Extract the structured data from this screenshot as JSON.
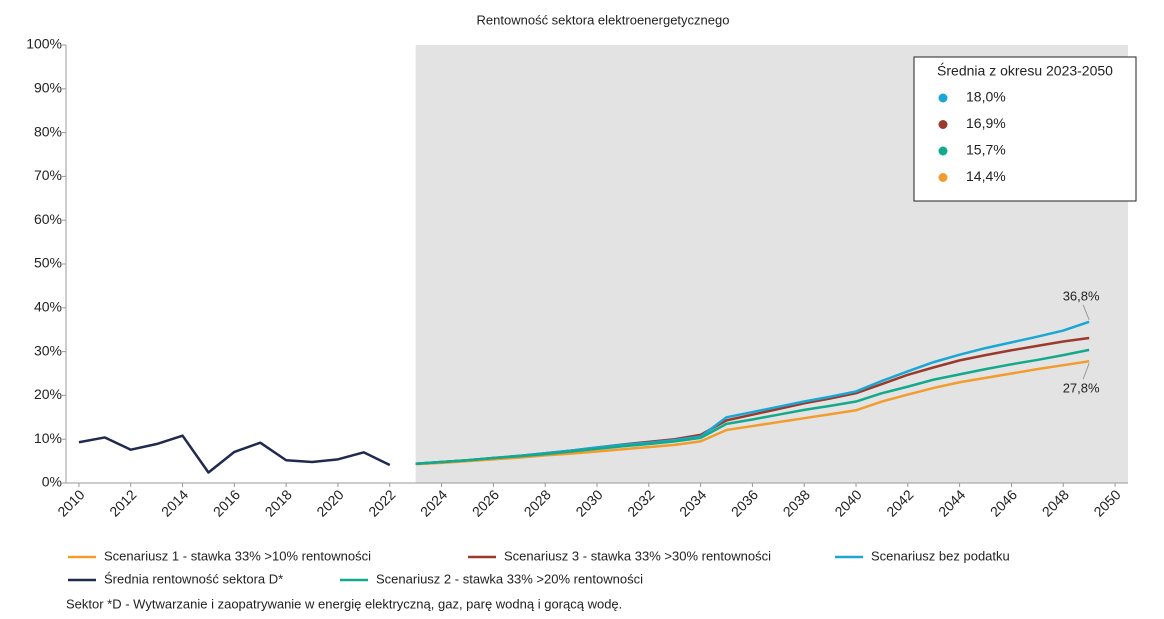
{
  "chart_data": {
    "type": "line",
    "title": "Rentowność sektora elektroenergetycznego",
    "xlim": [
      2009.5,
      2050.5
    ],
    "xticks": [
      2010,
      2012,
      2014,
      2016,
      2018,
      2020,
      2022,
      2024,
      2026,
      2028,
      2030,
      2032,
      2034,
      2036,
      2038,
      2040,
      2042,
      2044,
      2046,
      2048,
      2050
    ],
    "ylim": [
      0,
      100
    ],
    "yticks": [
      {
        "value": 0,
        "label": "0%"
      },
      {
        "value": 10,
        "label": "10%"
      },
      {
        "value": 20,
        "label": "20%"
      },
      {
        "value": 30,
        "label": "30%"
      },
      {
        "value": 40,
        "label": "40%"
      },
      {
        "value": 50,
        "label": "50%"
      },
      {
        "value": 60,
        "label": "60%"
      },
      {
        "value": 70,
        "label": "70%"
      },
      {
        "value": 80,
        "label": "80%"
      },
      {
        "value": 90,
        "label": "90%"
      },
      {
        "value": 100,
        "label": "100%"
      }
    ],
    "shaded_region": {
      "x": [
        2023,
        2050.5
      ],
      "color": "#e3e3e3"
    },
    "series": [
      {
        "name": "Scenariusz 1 - stawka 33% >10% rentowności",
        "color": "#f39c2e",
        "x": [
          2023,
          2024,
          2025,
          2026,
          2027,
          2028,
          2029,
          2030,
          2031,
          2032,
          2033,
          2034,
          2035,
          2036,
          2037,
          2038,
          2039,
          2040,
          2041,
          2042,
          2043,
          2044,
          2045,
          2046,
          2047,
          2048,
          2049
        ],
        "values": [
          4.3,
          4.6,
          5.0,
          5.4,
          5.8,
          6.3,
          6.7,
          7.2,
          7.7,
          8.2,
          8.7,
          9.5,
          12.1,
          13.0,
          13.9,
          14.8,
          15.7,
          16.6,
          18.6,
          20.2,
          21.7,
          23.0,
          24.0,
          25.0,
          26.0,
          26.9,
          27.8
        ]
      },
      {
        "name": "Scenariusz 3 - stawka 33% >30% rentowności",
        "color": "#9b3a2c",
        "x": [
          2023,
          2024,
          2025,
          2026,
          2027,
          2028,
          2029,
          2030,
          2031,
          2032,
          2033,
          2034,
          2035,
          2036,
          2037,
          2038,
          2039,
          2040,
          2041,
          2042,
          2043,
          2044,
          2045,
          2046,
          2047,
          2048,
          2049
        ],
        "values": [
          4.4,
          4.8,
          5.2,
          5.7,
          6.2,
          6.8,
          7.4,
          8.1,
          8.8,
          9.4,
          10.0,
          11.0,
          14.3,
          15.6,
          16.9,
          18.2,
          19.3,
          20.5,
          22.6,
          24.7,
          26.4,
          28.0,
          29.2,
          30.3,
          31.3,
          32.3,
          33.1
        ]
      },
      {
        "name": "Scenariusz bez podatku",
        "color": "#1aa7d4",
        "x": [
          2023,
          2024,
          2025,
          2026,
          2027,
          2028,
          2029,
          2030,
          2031,
          2032,
          2033,
          2034,
          2035,
          2036,
          2037,
          2038,
          2039,
          2040,
          2041,
          2042,
          2043,
          2044,
          2045,
          2046,
          2047,
          2048,
          2049
        ],
        "values": [
          4.4,
          4.8,
          5.2,
          5.7,
          6.2,
          6.8,
          7.4,
          8.1,
          8.7,
          9.2,
          9.8,
          10.6,
          15.0,
          16.2,
          17.4,
          18.6,
          19.7,
          20.9,
          23.3,
          25.5,
          27.6,
          29.3,
          30.8,
          32.1,
          33.4,
          34.8,
          36.8
        ]
      },
      {
        "name": "Średnia rentowność sektora D*",
        "color": "#1f2a4e",
        "x": [
          2010,
          2011,
          2012,
          2013,
          2014,
          2015,
          2016,
          2017,
          2018,
          2019,
          2020,
          2021,
          2022
        ],
        "values": [
          9.3,
          10.4,
          7.6,
          8.9,
          10.8,
          2.4,
          7.1,
          9.2,
          5.2,
          4.8,
          5.4,
          7.0,
          4.1
        ]
      },
      {
        "name": "Scenariusz 2 - stawka 33% >20% rentowności",
        "color": "#13a98b",
        "x": [
          2023,
          2024,
          2025,
          2026,
          2027,
          2028,
          2029,
          2030,
          2031,
          2032,
          2033,
          2034,
          2035,
          2036,
          2037,
          2038,
          2039,
          2040,
          2041,
          2042,
          2043,
          2044,
          2045,
          2046,
          2047,
          2048,
          2049
        ],
        "values": [
          4.4,
          4.8,
          5.2,
          5.7,
          6.1,
          6.6,
          7.2,
          7.8,
          8.4,
          8.9,
          9.5,
          10.3,
          13.5,
          14.5,
          15.6,
          16.7,
          17.6,
          18.6,
          20.5,
          22.0,
          23.6,
          24.8,
          26.0,
          27.1,
          28.1,
          29.2,
          30.4
        ]
      }
    ],
    "annotations": [
      {
        "label": "36,8%",
        "value": 36.8
      },
      {
        "label": "27,8%",
        "value": 27.8
      }
    ],
    "inset": {
      "title": "Średnia z okresu 2023-2050",
      "items": [
        {
          "color": "#1aa7d4",
          "value": 18.0,
          "label": "18,0%"
        },
        {
          "color": "#9b3a2c",
          "value": 16.9,
          "label": "16,9%"
        },
        {
          "color": "#13a98b",
          "value": 15.7,
          "label": "15,7%"
        },
        {
          "color": "#f39c2e",
          "value": 14.4,
          "label": "14,4%"
        }
      ]
    },
    "footnote": "Sektor *D - Wytwarzanie i zaopatrywanie w energię elektryczną, gaz, parę wodną i gorącą wodę."
  }
}
